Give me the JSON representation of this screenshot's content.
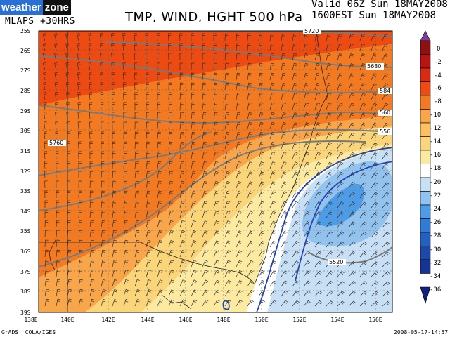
{
  "header": {
    "brand_left": "weather",
    "brand_right": "zone",
    "model_run": "MLAPS +30HRS",
    "title": "TMP, WIND, HGHT 500 hPa",
    "valid_line1": "Valid 06Z Sun 18MAY2008",
    "valid_line2": "1600EST Sun 18MAY2008"
  },
  "map": {
    "lat_labels": [
      "25S",
      "26S",
      "27S",
      "28S",
      "29S",
      "30S",
      "31S",
      "32S",
      "33S",
      "34S",
      "35S",
      "36S",
      "37S",
      "38S",
      "39S"
    ],
    "lon_labels": [
      "138E",
      "140E",
      "142E",
      "144E",
      "146E",
      "148E",
      "150E",
      "152E",
      "154E",
      "156E"
    ],
    "contour_labels": [
      "5720",
      "5680",
      "584",
      "560",
      "556",
      "5760",
      "5520"
    ],
    "colors": {
      "deep_orange": "#ee4b12",
      "orange": "#f47a22",
      "light_orange": "#f9a54a",
      "yellow": "#fbd57a",
      "light_yellow": "#fbeaa0",
      "white": "#ffffff",
      "light_blue": "#c8e0f6",
      "blue": "#92c2ee",
      "mid_blue": "#4f9ce6",
      "contour_grey": "#7a7a7a",
      "contour_blue": "#2244bb"
    }
  },
  "colorbar": {
    "labels": [
      "0",
      "-2",
      "-4",
      "-6",
      "-8",
      "-10",
      "-12",
      "-14",
      "-16",
      "-18",
      "-20",
      "-22",
      "-24",
      "-26",
      "-28",
      "-30",
      "-32",
      "-34",
      "-36"
    ],
    "colors": [
      "#7b3e9c",
      "#8e1010",
      "#b81414",
      "#d92a16",
      "#ee4b12",
      "#f47a22",
      "#f9a54a",
      "#fbc061",
      "#fbd57a",
      "#fbeaa0",
      "#ffffff",
      "#c8e0f6",
      "#92c2ee",
      "#4f9ce6",
      "#2f7bd6",
      "#2460c0",
      "#1c48aa",
      "#163494",
      "#10227c"
    ]
  },
  "footer": {
    "credit": "GrADS: COLA/IGES",
    "timestamp": "2008-05-17-14:57"
  }
}
